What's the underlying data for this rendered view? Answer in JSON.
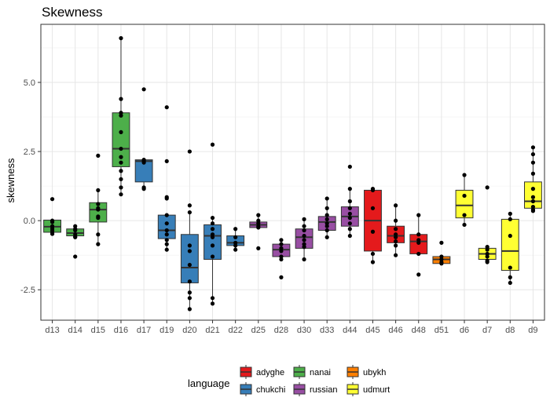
{
  "chart_data": {
    "type": "box",
    "title": "Skewness",
    "xlabel": "",
    "ylabel": "skewness",
    "ylim": [
      -3.6,
      7.1
    ],
    "y_ticks": [
      -2.5,
      0.0,
      2.5,
      5.0
    ],
    "y_tick_labels": [
      "-2.5",
      "0.0",
      "2.5",
      "5.0"
    ],
    "grid": true,
    "legend": {
      "title": "language",
      "placement": "bottom",
      "items": [
        {
          "name": "adyghe",
          "color": "#E41A1C"
        },
        {
          "name": "nanai",
          "color": "#4DAF4A"
        },
        {
          "name": "ubykh",
          "color": "#FF7F00"
        },
        {
          "name": "chukchi",
          "color": "#377EB8"
        },
        {
          "name": "russian",
          "color": "#984EA3"
        },
        {
          "name": "udmurt",
          "color": "#FFFF33"
        }
      ]
    },
    "categories": [
      "d13",
      "d14",
      "d15",
      "d16",
      "d17",
      "d19",
      "d20",
      "d21",
      "d22",
      "d25",
      "d28",
      "d30",
      "d33",
      "d44",
      "d45",
      "d46",
      "d48",
      "d51",
      "d6",
      "d7",
      "d8",
      "d9"
    ],
    "boxes": [
      {
        "category": "d13",
        "language": "nanai",
        "whisker_low": -0.48,
        "q1": -0.42,
        "median": -0.22,
        "q3": 0.02,
        "whisker_high": 0.02,
        "points": [
          0.78,
          0.0,
          -0.05,
          -0.2,
          -0.28,
          -0.35,
          -0.42,
          -0.48
        ]
      },
      {
        "category": "d14",
        "language": "nanai",
        "whisker_low": -0.6,
        "q1": -0.55,
        "median": -0.45,
        "q3": -0.3,
        "whisker_high": -0.2,
        "points": [
          -0.2,
          -0.3,
          -0.35,
          -0.5,
          -0.58,
          -0.6,
          -1.3
        ]
      },
      {
        "category": "d15",
        "language": "nanai",
        "whisker_low": -0.85,
        "q1": -0.05,
        "median": 0.4,
        "q3": 0.65,
        "whisker_high": 1.1,
        "points": [
          2.35,
          1.1,
          0.6,
          0.45,
          0.4,
          0.15,
          0.1,
          -0.5,
          -0.85
        ]
      },
      {
        "category": "d16",
        "language": "nanai",
        "whisker_low": 0.95,
        "q1": 1.95,
        "median": 2.6,
        "q3": 3.9,
        "whisker_high": 6.6,
        "points": [
          6.6,
          4.4,
          3.9,
          3.8,
          3.2,
          2.6,
          2.3,
          2.1,
          1.8,
          1.5,
          1.2,
          0.95
        ]
      },
      {
        "category": "d17",
        "language": "chukchi",
        "whisker_low": 1.15,
        "q1": 1.4,
        "median": 2.15,
        "q3": 2.2,
        "whisker_high": 2.2,
        "points": [
          4.75,
          2.2,
          2.15,
          2.1,
          1.2,
          1.15
        ]
      },
      {
        "category": "d19",
        "language": "chukchi",
        "whisker_low": -1.05,
        "q1": -0.65,
        "median": -0.35,
        "q3": 0.2,
        "whisker_high": 0.2,
        "points": [
          4.1,
          2.15,
          0.85,
          0.8,
          0.2,
          -0.1,
          -0.35,
          -0.5,
          -0.7,
          -0.85,
          -1.05
        ]
      },
      {
        "category": "d20",
        "language": "chukchi",
        "whisker_low": -3.2,
        "q1": -2.25,
        "median": -1.7,
        "q3": -0.5,
        "whisker_high": 0.3,
        "points": [
          2.5,
          0.55,
          0.3,
          -0.9,
          -1.1,
          -1.6,
          -2.2,
          -2.6,
          -2.8,
          -3.2
        ]
      },
      {
        "category": "d21",
        "language": "chukchi",
        "whisker_low": -3.0,
        "q1": -1.4,
        "median": -0.55,
        "q3": -0.15,
        "whisker_high": 0.1,
        "points": [
          2.75,
          0.1,
          -0.1,
          -0.3,
          -0.5,
          -0.6,
          -0.9,
          -1.3,
          -2.8,
          -3.0
        ]
      },
      {
        "category": "d22",
        "language": "chukchi",
        "whisker_low": -1.05,
        "q1": -0.9,
        "median": -0.8,
        "q3": -0.55,
        "whisker_high": -0.3,
        "points": [
          -0.3,
          -0.6,
          -0.8,
          -0.9,
          -1.05
        ]
      },
      {
        "category": "d25",
        "language": "russian",
        "whisker_low": -0.3,
        "q1": -0.25,
        "median": -0.15,
        "q3": -0.05,
        "whisker_high": 0.2,
        "points": [
          0.2,
          0.0,
          -0.1,
          -0.2,
          -0.25,
          -1.0
        ]
      },
      {
        "category": "d28",
        "language": "russian",
        "whisker_low": -1.4,
        "q1": -1.3,
        "median": -1.05,
        "q3": -0.85,
        "whisker_high": -0.7,
        "points": [
          -0.7,
          -0.85,
          -1.0,
          -1.1,
          -1.3,
          -1.4,
          -2.05
        ]
      },
      {
        "category": "d30",
        "language": "russian",
        "whisker_low": -1.4,
        "q1": -1.0,
        "median": -0.6,
        "q3": -0.3,
        "whisker_high": 0.05,
        "points": [
          0.05,
          -0.2,
          -0.35,
          -0.55,
          -0.7,
          -0.85,
          -0.95,
          -1.4
        ]
      },
      {
        "category": "d33",
        "language": "russian",
        "whisker_low": -0.6,
        "q1": -0.35,
        "median": -0.05,
        "q3": 0.15,
        "whisker_high": 0.8,
        "points": [
          0.8,
          0.45,
          0.2,
          0.05,
          -0.1,
          -0.2,
          -0.35,
          -0.6
        ]
      },
      {
        "category": "d44",
        "language": "russian",
        "whisker_low": -0.55,
        "q1": -0.2,
        "median": 0.15,
        "q3": 0.5,
        "whisker_high": 1.15,
        "points": [
          1.95,
          1.15,
          0.7,
          0.45,
          0.25,
          0.1,
          -0.1,
          -0.3,
          -0.55
        ]
      },
      {
        "category": "d45",
        "language": "adyghe",
        "whisker_low": -1.5,
        "q1": -1.1,
        "median": 0.0,
        "q3": 1.1,
        "whisker_high": 1.15,
        "points": [
          1.15,
          1.1,
          0.45,
          -0.4,
          -1.2,
          -1.5
        ]
      },
      {
        "category": "d46",
        "language": "adyghe",
        "whisker_low": -1.25,
        "q1": -0.8,
        "median": -0.55,
        "q3": -0.2,
        "whisker_high": 0.55,
        "points": [
          0.55,
          0.0,
          -0.3,
          -0.5,
          -0.6,
          -0.75,
          -0.9,
          -1.25
        ]
      },
      {
        "category": "d48",
        "language": "adyghe",
        "whisker_low": -1.25,
        "q1": -1.2,
        "median": -0.75,
        "q3": -0.5,
        "whisker_high": 0.2,
        "points": [
          0.2,
          -0.5,
          -0.7,
          -0.8,
          -1.2,
          -1.95
        ]
      },
      {
        "category": "d51",
        "language": "ubykh",
        "whisker_low": -1.55,
        "q1": -1.55,
        "median": -1.4,
        "q3": -1.3,
        "whisker_high": -1.3,
        "points": [
          -0.8,
          -1.3,
          -1.4,
          -1.5,
          -1.55
        ]
      },
      {
        "category": "d6",
        "language": "udmurt",
        "whisker_low": -0.15,
        "q1": 0.1,
        "median": 0.55,
        "q3": 1.1,
        "whisker_high": 1.65,
        "points": [
          1.65,
          0.9,
          0.2,
          -0.15
        ]
      },
      {
        "category": "d7",
        "language": "udmurt",
        "whisker_low": -1.5,
        "q1": -1.4,
        "median": -1.2,
        "q3": -1.0,
        "whisker_high": -0.95,
        "points": [
          1.2,
          -0.95,
          -1.05,
          -1.2,
          -1.3,
          -1.45,
          -1.5
        ]
      },
      {
        "category": "d8",
        "language": "udmurt",
        "whisker_low": -2.25,
        "q1": -1.8,
        "median": -1.1,
        "q3": 0.05,
        "whisker_high": 0.25,
        "points": [
          0.25,
          0.05,
          -0.55,
          -1.7,
          -2.05,
          -2.25
        ]
      },
      {
        "category": "d9",
        "language": "udmurt",
        "whisker_low": 0.35,
        "q1": 0.45,
        "median": 0.7,
        "q3": 1.4,
        "whisker_high": 2.65,
        "points": [
          2.65,
          2.4,
          2.1,
          1.7,
          1.15,
          0.85,
          0.7,
          0.5,
          0.4,
          0.35
        ]
      }
    ]
  }
}
